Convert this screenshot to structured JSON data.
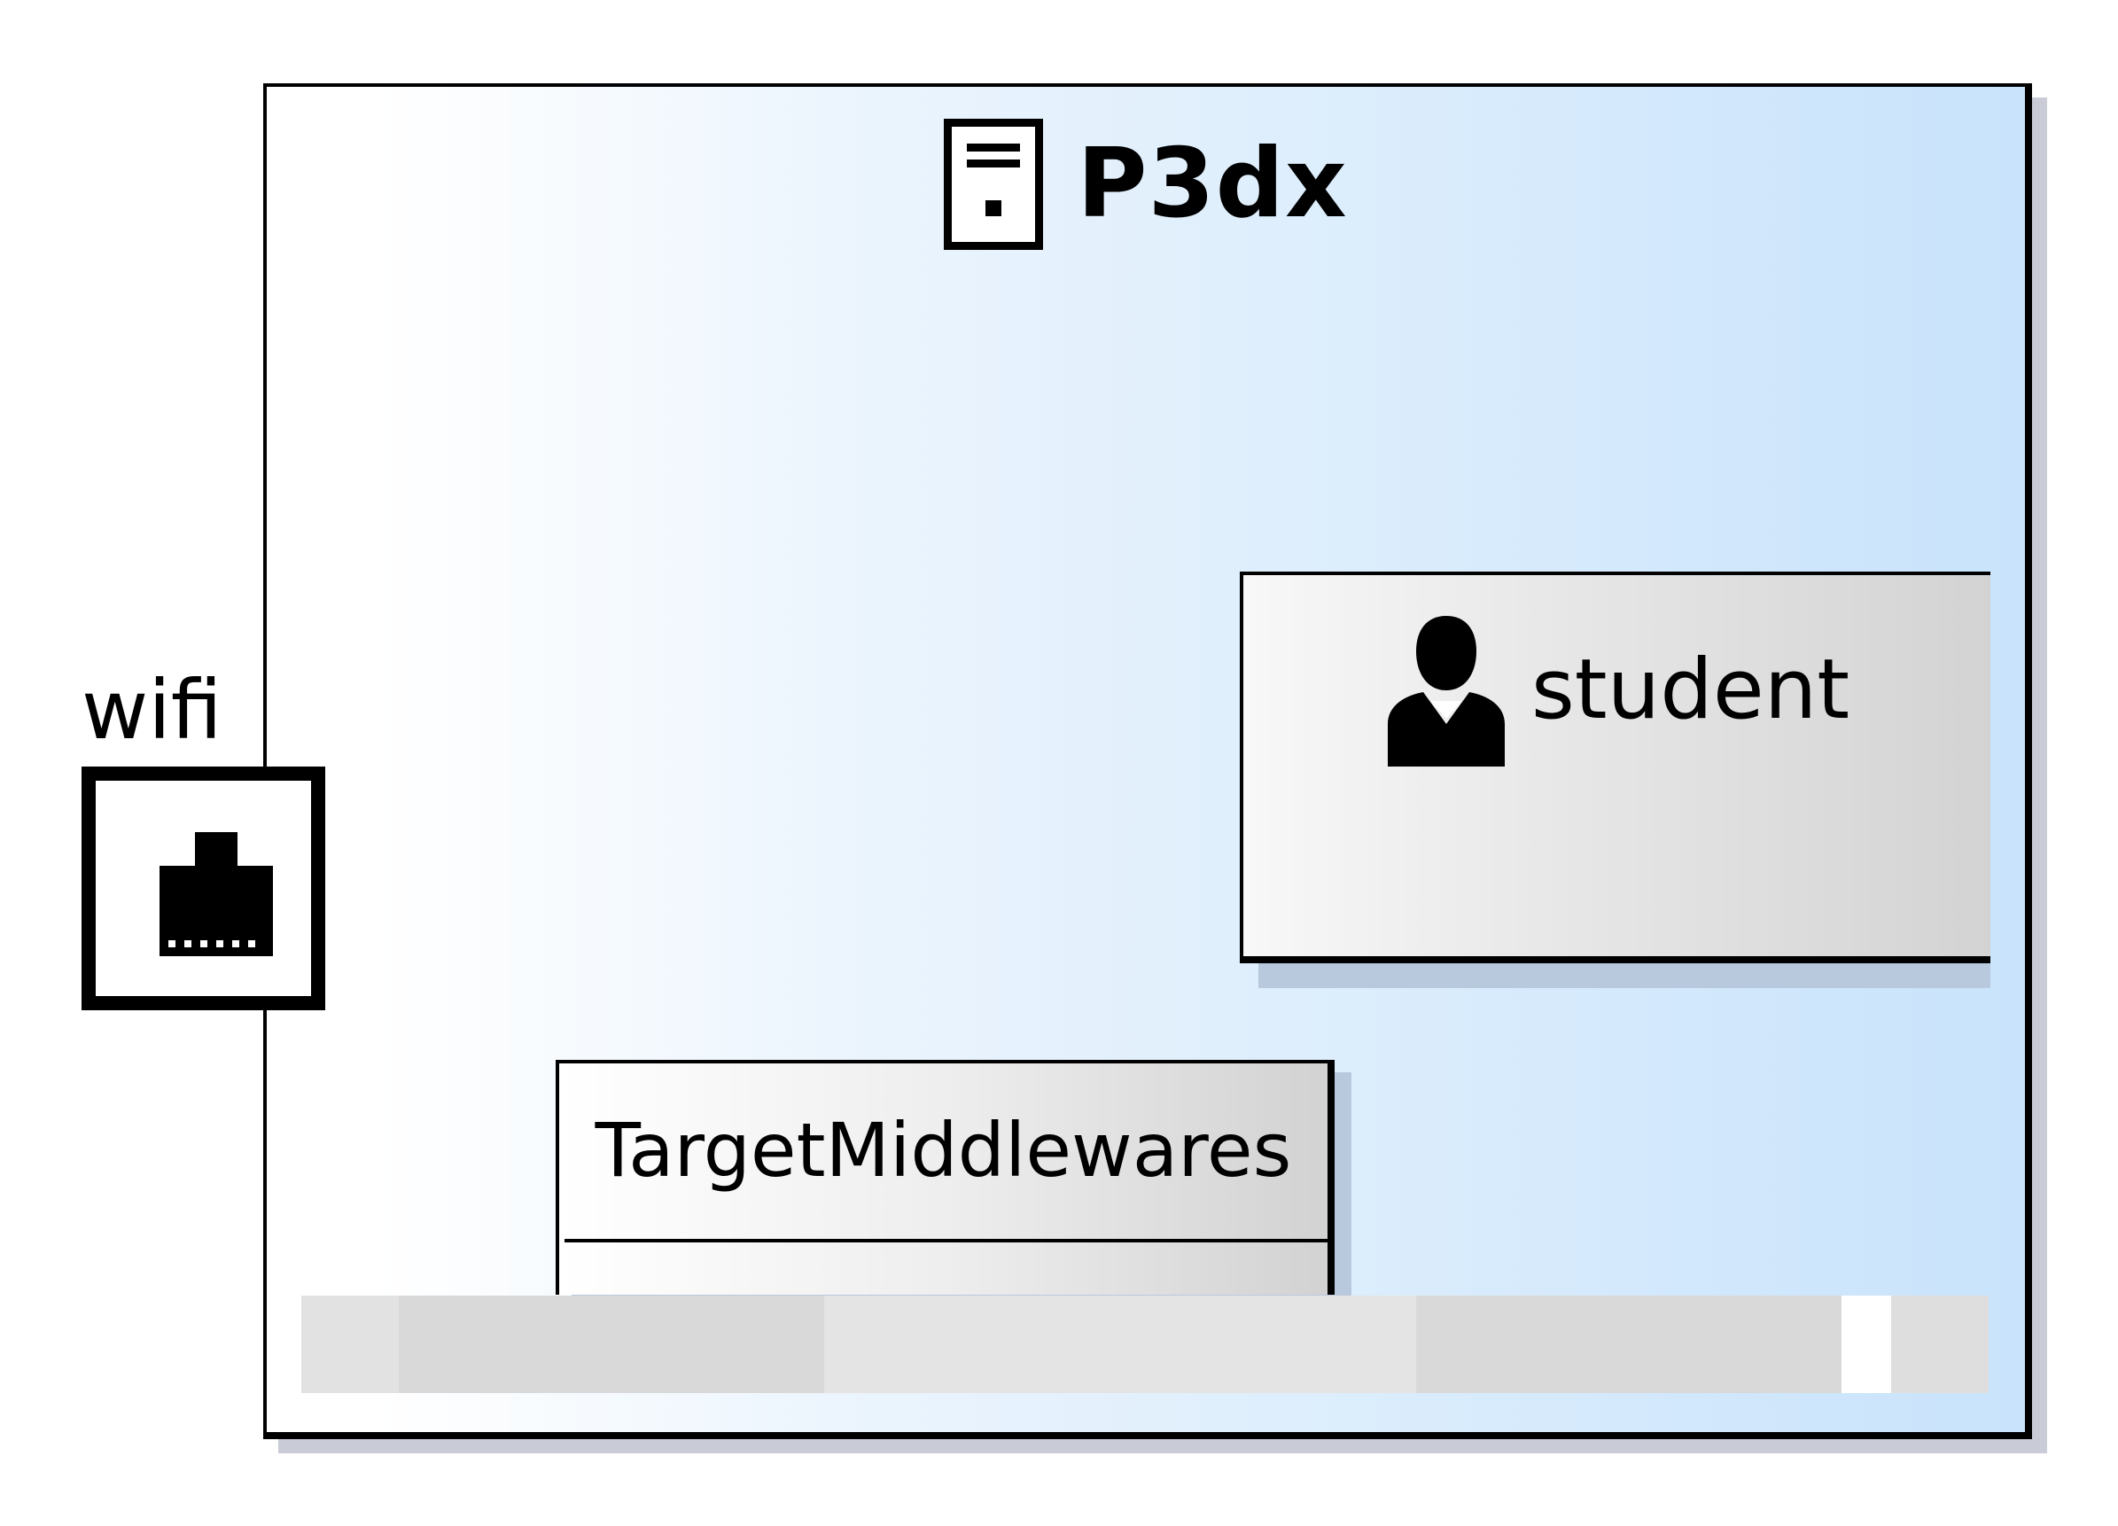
{
  "node": {
    "title": "P3dx",
    "icon": "server-icon"
  },
  "parts": [
    {
      "label": "student",
      "icon": "user-icon"
    },
    {
      "label": "TargetMiddlewares"
    }
  ],
  "port": {
    "label": "wifi",
    "icon": "ethernet-port-icon"
  },
  "colors": {
    "node_fill_start": "#ffffff",
    "node_fill_end": "#c8e3fb",
    "part_fill_start": "#f8f8f8",
    "part_fill_end": "#d3d3d3",
    "outline": "#000000",
    "strip_colors": [
      "#e2e2e2",
      "#d9d9d9",
      "#e4e4e4",
      "#d9d9d9",
      "#ffffff",
      "#dedede"
    ]
  }
}
